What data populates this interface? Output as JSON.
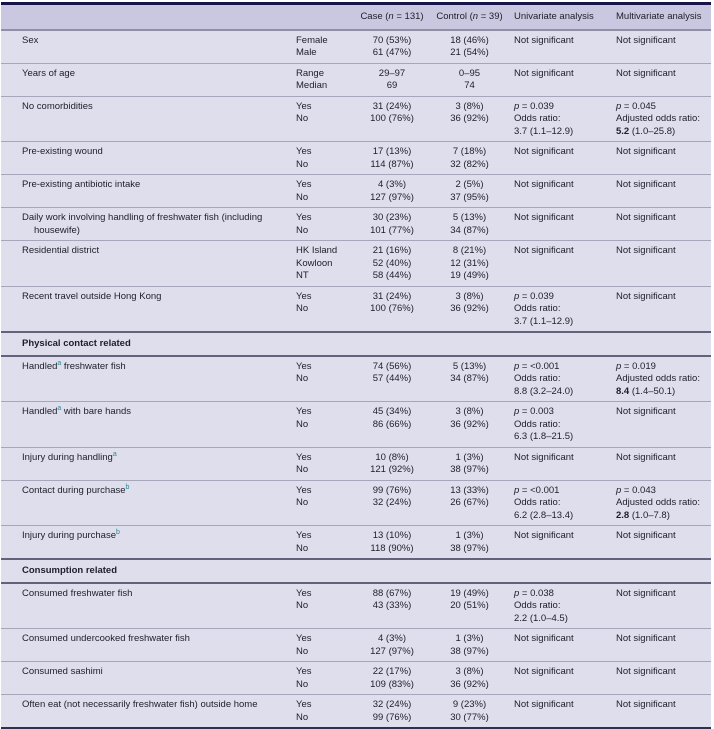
{
  "colors": {
    "header_bg": "#cac8e0",
    "body_bg": "#dfdeec",
    "row_line": "#a6a6ba",
    "section_line": "#62627c",
    "top_border": "#15154a",
    "bottom_border": "#30304c",
    "footnote_marker": "#2a8a96",
    "text": "#1e1e2a"
  },
  "table": {
    "header": {
      "label": "",
      "category": "",
      "case": "Case (*n* = 131)",
      "control": "Control (*n* = 39)",
      "univariate": "Univariate analysis",
      "multivariate": "Multivariate analysis"
    },
    "rows": [
      {
        "type": "data",
        "label": "Sex",
        "categories": [
          "Female",
          "Male"
        ],
        "case": [
          "70 (53%)",
          "61 (47%)"
        ],
        "control": [
          "18 (46%)",
          "21 (54%)"
        ],
        "univariate": [
          "Not significant"
        ],
        "multivariate": [
          "Not significant"
        ]
      },
      {
        "type": "data",
        "label": "Years of age",
        "categories": [
          "Range",
          "Median"
        ],
        "case": [
          "29–97",
          "69"
        ],
        "control": [
          "0–95",
          "74"
        ],
        "univariate": [
          "Not significant"
        ],
        "multivariate": [
          "Not significant"
        ]
      },
      {
        "type": "data",
        "label": "No comorbidities",
        "categories": [
          "Yes",
          "No"
        ],
        "case": [
          "31 (24%)",
          "100 (76%)"
        ],
        "control": [
          "3 (8%)",
          "36 (92%)"
        ],
        "univariate": [
          "*p* = 0.039",
          "Odds ratio:",
          "3.7 (1.1–12.9)"
        ],
        "multivariate": [
          "*p* = 0.045",
          "Adjusted odds ratio:",
          "**5.2** (1.0–25.8)"
        ]
      },
      {
        "type": "data",
        "label": "Pre-existing wound",
        "categories": [
          "Yes",
          "No"
        ],
        "case": [
          "17 (13%)",
          "114 (87%)"
        ],
        "control": [
          "7 (18%)",
          "32 (82%)"
        ],
        "univariate": [
          "Not significant"
        ],
        "multivariate": [
          "Not significant"
        ]
      },
      {
        "type": "data",
        "label": "Pre-existing antibiotic intake",
        "categories": [
          "Yes",
          "No"
        ],
        "case": [
          "4 (3%)",
          "127 (97%)"
        ],
        "control": [
          "2 (5%)",
          "37 (95%)"
        ],
        "univariate": [
          "Not significant"
        ],
        "multivariate": [
          "Not significant"
        ]
      },
      {
        "type": "data",
        "label": "Daily work involving handling of freshwater fish (including housewife)",
        "categories": [
          "Yes",
          "No"
        ],
        "case": [
          "30 (23%)",
          "101 (77%)"
        ],
        "control": [
          "5 (13%)",
          "34 (87%)"
        ],
        "univariate": [
          "Not significant"
        ],
        "multivariate": [
          "Not significant"
        ]
      },
      {
        "type": "data",
        "label": "Residential district",
        "categories": [
          "HK Island",
          "Kowloon",
          "NT"
        ],
        "case": [
          "21 (16%)",
          "52 (40%)",
          "58 (44%)"
        ],
        "control": [
          "8 (21%)",
          "12 (31%)",
          "19 (49%)"
        ],
        "univariate": [
          "Not significant"
        ],
        "multivariate": [
          "Not significant"
        ]
      },
      {
        "type": "data",
        "label": "Recent travel outside Hong Kong",
        "categories": [
          "Yes",
          "No"
        ],
        "case": [
          "31 (24%)",
          "100 (76%)"
        ],
        "control": [
          "3 (8%)",
          "36 (92%)"
        ],
        "univariate": [
          "*p* = 0.039",
          "Odds ratio:",
          "3.7 (1.1–12.9)"
        ],
        "multivariate": [
          "Not significant"
        ]
      },
      {
        "type": "section",
        "label": "Physical contact related"
      },
      {
        "type": "data",
        "label": "Handled^a^ freshwater fish",
        "categories": [
          "Yes",
          "No"
        ],
        "case": [
          "74 (56%)",
          "57 (44%)"
        ],
        "control": [
          "5 (13%)",
          "34 (87%)"
        ],
        "univariate": [
          "*p* = <0.001",
          "Odds ratio:",
          "8.8 (3.2–24.0)"
        ],
        "multivariate": [
          "*p* = 0.019",
          "Adjusted odds ratio:",
          "**8.4** (1.4–50.1)"
        ]
      },
      {
        "type": "data",
        "label": "Handled^a^ with bare hands",
        "categories": [
          "Yes",
          "No"
        ],
        "case": [
          "45 (34%)",
          "86 (66%)"
        ],
        "control": [
          "3 (8%)",
          "36 (92%)"
        ],
        "univariate": [
          "*p* = 0.003",
          "Odds ratio:",
          "6.3 (1.8–21.5)"
        ],
        "multivariate": [
          "Not significant"
        ]
      },
      {
        "type": "data",
        "label": "Injury during handling^a^",
        "categories": [
          "Yes",
          "No"
        ],
        "case": [
          "10 (8%)",
          "121 (92%)"
        ],
        "control": [
          "1 (3%)",
          "38 (97%)"
        ],
        "univariate": [
          "Not significant"
        ],
        "multivariate": [
          "Not significant"
        ]
      },
      {
        "type": "data",
        "label": "Contact during purchase^b^",
        "categories": [
          "Yes",
          "No"
        ],
        "case": [
          "99 (76%)",
          "32 (24%)"
        ],
        "control": [
          "13 (33%)",
          "26 (67%)"
        ],
        "univariate": [
          "*p* = <0.001",
          "Odds ratio:",
          "6.2 (2.8–13.4)"
        ],
        "multivariate": [
          "*p* = 0.043",
          "Adjusted odds ratio:",
          "**2.8** (1.0–7.8)"
        ]
      },
      {
        "type": "data",
        "label": "Injury during purchase^b^",
        "categories": [
          "Yes",
          "No"
        ],
        "case": [
          "13 (10%)",
          "118 (90%)"
        ],
        "control": [
          "1 (3%)",
          "38 (97%)"
        ],
        "univariate": [
          "Not significant"
        ],
        "multivariate": [
          "Not significant"
        ]
      },
      {
        "type": "section",
        "label": "Consumption related"
      },
      {
        "type": "data",
        "label": "Consumed freshwater fish",
        "categories": [
          "Yes",
          "No"
        ],
        "case": [
          "88 (67%)",
          "43 (33%)"
        ],
        "control": [
          "19 (49%)",
          "20 (51%)"
        ],
        "univariate": [
          "*p* = 0.038",
          "Odds ratio:",
          "2.2 (1.0–4.5)"
        ],
        "multivariate": [
          "Not significant"
        ]
      },
      {
        "type": "data",
        "label": "Consumed undercooked freshwater fish",
        "categories": [
          "Yes",
          "No"
        ],
        "case": [
          "4 (3%)",
          "127 (97%)"
        ],
        "control": [
          "1 (3%)",
          "38 (97%)"
        ],
        "univariate": [
          "Not significant"
        ],
        "multivariate": [
          "Not significant"
        ]
      },
      {
        "type": "data",
        "label": "Consumed sashimi",
        "categories": [
          "Yes",
          "No"
        ],
        "case": [
          "22 (17%)",
          "109 (83%)"
        ],
        "control": [
          "3 (8%)",
          "36 (92%)"
        ],
        "univariate": [
          "Not significant"
        ],
        "multivariate": [
          "Not significant"
        ]
      },
      {
        "type": "data",
        "label": "Often eat (not necessarily freshwater fish) outside home",
        "categories": [
          "Yes",
          "No"
        ],
        "case": [
          "32 (24%)",
          "99 (76%)"
        ],
        "control": [
          "9 (23%)",
          "30 (77%)"
        ],
        "univariate": [
          "Not significant"
        ],
        "multivariate": [
          "Not significant"
        ]
      }
    ]
  }
}
